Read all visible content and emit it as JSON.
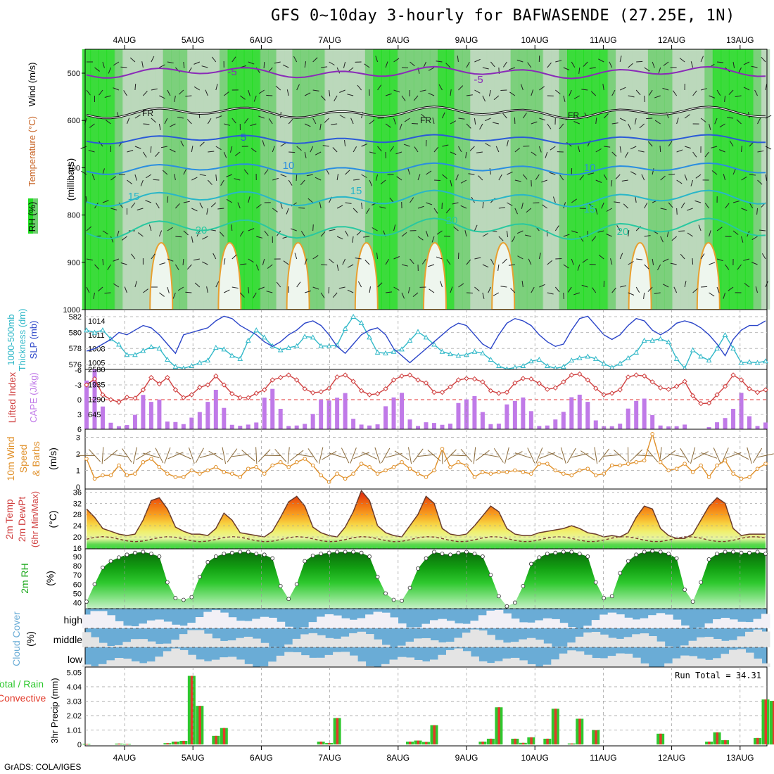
{
  "title": "GFS 0~10day 3-hourly for BAFWASENDE (27.25E, 1N)",
  "credit": "GrADS: COLA/IGES",
  "colors": {
    "green": "#2ec82e",
    "rain": "#e23a2a",
    "sky": "#6aacd6",
    "cloudy": "#e4e4e4",
    "temp": "#d04040",
    "cape": "#c07ae8",
    "wind10": "#e0902a",
    "slp": "#2a44c8",
    "thick": "#30b8c8",
    "rh": "#1aa81a",
    "fr": "#111111"
  },
  "dates": [
    "4AUG",
    "5AUG",
    "6AUG",
    "7AUG",
    "8AUG",
    "9AUG",
    "10AUG",
    "11AUG",
    "12AUG",
    "13AUG"
  ],
  "panels": {
    "upper": {
      "ylabel": "(millibars)",
      "legend": [
        "RH (%)",
        "Temperature (°C)",
        "Wind (m/s)"
      ],
      "ticks": [
        "500",
        "600",
        "700",
        "800",
        "900",
        "1000"
      ],
      "contour_labels": [
        {
          "text": "-5",
          "level": -5
        },
        {
          "text": "-5",
          "level": -5
        },
        {
          "text": "FR",
          "level": 0
        },
        {
          "text": "FR",
          "level": 0
        },
        {
          "text": "FR",
          "level": 0
        },
        {
          "text": "5",
          "level": 5
        },
        {
          "text": "10",
          "level": 10
        },
        {
          "text": "10",
          "level": 10
        },
        {
          "text": "15",
          "level": 15
        },
        {
          "text": "15",
          "level": 15
        },
        {
          "text": "15",
          "level": 15
        },
        {
          "text": "20",
          "level": 20
        },
        {
          "text": "20",
          "level": 20
        },
        {
          "text": "20",
          "level": 20
        }
      ]
    },
    "slp": {
      "left_label": "1000-500mb Thickness (dm)",
      "right_label": "SLP (mb)",
      "left_ticks": [
        "582",
        "580",
        "578",
        "576"
      ],
      "right_ticks": [
        "1014",
        "1011",
        "1008",
        "1005"
      ]
    },
    "cape": {
      "left_label": "Lifted Index",
      "right_label": "CAPE (J/kg)",
      "left_ticks": [
        "-6",
        "-3",
        "0",
        "3",
        "6"
      ],
      "right_ticks": [
        "2580",
        "1935",
        "1290",
        "645"
      ]
    },
    "wind10": {
      "left_label": "10m Wind",
      "mid_label": "Speed & Barbs",
      "unit": "(m/s)",
      "ticks": [
        "3",
        "2",
        "1",
        "0"
      ]
    },
    "temp2m": {
      "l1": "2m Temp",
      "l2": "2m DewPt",
      "l3": "(6hr Min/Max)",
      "unit": "(°C)",
      "ticks": [
        "36",
        "32",
        "28",
        "24",
        "20",
        "16"
      ]
    },
    "rh2m": {
      "label": "2m RH",
      "unit": "(%)",
      "ticks": [
        "90",
        "80",
        "70",
        "60",
        "50",
        "40"
      ]
    },
    "cloud": {
      "label": "Cloud Cover",
      "unit": "(%)",
      "levels": [
        "high",
        "middle",
        "low"
      ]
    },
    "precip": {
      "left1": "Total / Rain",
      "left2": "Convective",
      "ylabel": "3hr Precip (mm)",
      "ticks": [
        "5.05",
        "4.04",
        "3.03",
        "2.02",
        "1.01",
        "0"
      ],
      "run_total": "Run Total = 34.31"
    }
  },
  "chart_data": [
    {
      "type": "line",
      "name": "1000-500mb Thickness",
      "yunit": "dm",
      "ylim": [
        575,
        583
      ],
      "y": [
        580.3,
        580,
        580.3,
        579.2,
        578.5,
        577.2,
        577.2,
        577.7,
        578.2,
        578,
        576.6,
        575.7,
        575.5,
        575.8,
        576.2,
        576.5,
        578.1,
        577.9,
        577.1,
        576.7,
        579,
        580.3,
        579.4,
        578.3,
        577.8,
        578.1,
        578.3,
        579.5,
        579.4,
        578.3,
        578.3,
        578.4,
        580.5,
        582,
        581.2,
        579.4,
        577.5,
        577.4,
        577.6,
        577.9,
        579,
        580.1,
        579.4,
        578.5,
        577.6,
        577.3,
        577.1,
        577.2,
        577.6,
        577.4,
        576.6,
        575.8,
        575.4,
        575.6,
        575.8,
        576.4,
        576.6,
        575.8,
        575.5,
        575.7,
        576.5,
        576.8,
        577,
        576.7,
        576.1,
        575.6,
        576.1,
        576.8,
        577.5,
        579,
        579,
        579.2,
        578.8,
        576.7,
        575.5,
        577.8,
        577,
        576.5,
        578,
        579.7,
        578,
        576.2,
        576.3,
        576.2,
        576.4
      ]
    },
    {
      "type": "line",
      "name": "SLP",
      "yunit": "mb",
      "ylim": [
        1004,
        1015.5
      ],
      "y": [
        1007.5,
        1008,
        1009,
        1010,
        1011.5,
        1011,
        1012,
        1013,
        1012.5,
        1011,
        1009,
        1007,
        1011,
        1011.5,
        1012,
        1012.5,
        1014,
        1015,
        1014.5,
        1013,
        1012,
        1011,
        1009.5,
        1008.5,
        1009.5,
        1011,
        1012,
        1013.5,
        1014,
        1013,
        1011,
        1008.5,
        1007,
        1009,
        1011,
        1012,
        1012.5,
        1011,
        1008,
        1006.5,
        1005,
        1006.5,
        1008,
        1009.5,
        1011,
        1012.5,
        1013.5,
        1013,
        1011,
        1009,
        1008,
        1011,
        1013.5,
        1014.5,
        1014,
        1013,
        1011,
        1009.5,
        1008.5,
        1009,
        1012,
        1014.5,
        1015,
        1013,
        1011,
        1010,
        1011,
        1013,
        1014.5,
        1014,
        1012,
        1011,
        1012,
        1013.5,
        1014,
        1013.5,
        1012.5,
        1011,
        1009,
        1006.5,
        1010,
        1012,
        1013,
        1013,
        1014
      ]
    },
    {
      "type": "line",
      "name": "Lifted Index",
      "yunit": "",
      "ylim": [
        6,
        -6
      ],
      "y": [
        -3,
        -4.2,
        -1,
        0,
        0.5,
        -0.5,
        -0.3,
        -2,
        -4.5,
        -3.2,
        -4.5,
        -2,
        -0.4,
        -1,
        -2.5,
        -3,
        -4.8,
        -3,
        -1.2,
        -0.4,
        -0.4,
        -1.3,
        -2,
        -4,
        -4.5,
        -5,
        -4,
        -2.2,
        -1.4,
        -1.6,
        -2.3,
        -4.6,
        -5,
        -3.7,
        -1.8,
        -1,
        -1.2,
        -2.2,
        -4,
        -4.8,
        -5,
        -4,
        -3.4,
        -1.5,
        -1.5,
        -2.6,
        -4,
        -4.3,
        -4.2,
        -3.6,
        -1.8,
        -1.3,
        -1.5,
        -3.4,
        -4.3,
        -4.2,
        -3.3,
        -2.1,
        -2.4,
        -3.6,
        -5,
        -5.2,
        -4,
        -2.3,
        -1,
        -1.3,
        -2,
        -4.6,
        -5,
        -4.8,
        -3.6,
        -2.4,
        -2.1,
        -2.7,
        -3.7,
        -0.8,
        0.8,
        0.7,
        -1,
        -2.7,
        -5,
        -4,
        -2.2,
        -1.5,
        -2
      ]
    },
    {
      "type": "bar",
      "name": "CAPE",
      "yunit": "J/kg",
      "ylim": [
        0,
        2580
      ],
      "y": [
        2100,
        2580,
        980,
        280,
        130,
        180,
        620,
        1480,
        1180,
        1280,
        330,
        310,
        220,
        500,
        740,
        1180,
        1700,
        920,
        190,
        150,
        200,
        290,
        1360,
        1740,
        880,
        140,
        160,
        230,
        660,
        1280,
        1240,
        1360,
        1560,
        450,
        200,
        160,
        210,
        990,
        1370,
        1570,
        420,
        140,
        300,
        270,
        190,
        240,
        1130,
        1290,
        1430,
        740,
        220,
        240,
        1070,
        1220,
        1370,
        780,
        140,
        160,
        420,
        750,
        1380,
        1490,
        1180,
        380,
        130,
        130,
        240,
        890,
        1220,
        1320,
        610,
        160,
        120,
        130,
        200,
        0,
        0,
        90,
        300,
        480,
        880,
        1570,
        560,
        140,
        290
      ]
    },
    {
      "type": "line",
      "name": "10m Wind Speed",
      "yunit": "m/s",
      "ylim": [
        0,
        3.4
      ],
      "y": [
        1.7,
        0.5,
        0.7,
        0.7,
        1.3,
        0.7,
        0.8,
        1.5,
        1.7,
        1.2,
        0.8,
        0.6,
        0.6,
        1,
        0.8,
        1,
        1.2,
        0.9,
        0.8,
        0.6,
        1.1,
        1.2,
        0.8,
        1.3,
        1.5,
        1.2,
        1.5,
        1.7,
        1.3,
        0.7,
        0.3,
        0.8,
        0.5,
        0.8,
        1.4,
        1.2,
        0.8,
        1,
        1.2,
        1.5,
        1.1,
        0.8,
        0.6,
        1,
        2.3,
        1.2,
        1.5,
        1.3,
        0.6,
        0.9,
        0.8,
        0.9,
        0.9,
        1,
        0.9,
        0.8,
        1.4,
        1.4,
        1,
        0.8,
        0.7,
        1,
        1.1,
        0.7,
        0.8,
        1.3,
        1.3,
        1.4,
        1.5,
        1.6,
        3.2,
        1.5,
        1,
        1.1,
        1.4,
        0.9,
        1.3,
        0.6,
        1.3,
        1.6,
        0.8,
        0.5,
        0.6,
        1.1,
        1.4
      ]
    },
    {
      "type": "area",
      "name": "2m Temp",
      "yunit": "°C",
      "ylim": [
        16,
        36
      ],
      "y": [
        30,
        27,
        23,
        22,
        21,
        20.5,
        21,
        26,
        33,
        34,
        30,
        23.5,
        22,
        21,
        21,
        20.5,
        23,
        28.5,
        26,
        21.5,
        21,
        20.5,
        20,
        22,
        27,
        32.5,
        34.5,
        31,
        23.5,
        21.5,
        20.5,
        20,
        23.5,
        29,
        36.5,
        33,
        24,
        21.5,
        20.5,
        20,
        24,
        28,
        34.5,
        32,
        23,
        21,
        20.5,
        21,
        24,
        27.5,
        31,
        29,
        23,
        21,
        20.5,
        20.5,
        21.5,
        22,
        22.5,
        23,
        24,
        23,
        21.5,
        21,
        20,
        20.5,
        20,
        21.5,
        27,
        31,
        30,
        23,
        20.5,
        19.5,
        19.5,
        21,
        26,
        31,
        34,
        32,
        23,
        20.5,
        21,
        21,
        21
      ]
    },
    {
      "type": "area",
      "name": "2m RH",
      "yunit": "%",
      "ylim": [
        35,
        95
      ],
      "y": [
        41,
        60,
        78,
        85,
        89,
        92,
        94,
        95,
        93,
        90,
        62,
        45,
        43,
        46,
        68,
        84,
        90,
        93,
        94,
        95,
        95,
        93,
        92,
        88,
        58,
        44,
        60,
        85,
        91,
        93,
        94,
        95,
        95,
        95,
        94,
        90,
        68,
        50,
        43,
        42,
        56,
        77,
        88,
        95,
        93,
        92,
        94,
        95,
        93,
        90,
        70,
        47,
        36,
        40,
        58,
        82,
        89,
        93,
        94,
        95,
        95,
        93,
        90,
        62,
        45,
        47,
        72,
        85,
        92,
        95,
        96,
        95,
        93,
        88,
        54,
        41,
        62,
        87,
        93,
        95,
        95,
        94,
        94,
        95,
        93
      ]
    },
    {
      "type": "bar",
      "name": "3hr Precip",
      "yunit": "mm",
      "ylim": [
        0,
        5.05
      ],
      "y": [
        0.05,
        0,
        0,
        0,
        0.06,
        0.05,
        0,
        0,
        0,
        0,
        0.09,
        0.2,
        0.25,
        4.8,
        2.7,
        0,
        0.6,
        1.15,
        0,
        0,
        0,
        0,
        0,
        0,
        0,
        0,
        0,
        0,
        0,
        0.2,
        0.1,
        1.85,
        0,
        0,
        0,
        0,
        0,
        0,
        0,
        0,
        0.2,
        0.27,
        0.18,
        1.35,
        0,
        0,
        0,
        0,
        0,
        0.2,
        0.4,
        2.6,
        0,
        0.4,
        0.11,
        0.5,
        0,
        0.4,
        2.5,
        0,
        0.07,
        1.8,
        0,
        1,
        0,
        0,
        0,
        0,
        0,
        0,
        0,
        0.75,
        0,
        0,
        0,
        0,
        0,
        0.2,
        0.85,
        0.3,
        0,
        0,
        0,
        0.45,
        3.15,
        3.05,
        0.25,
        0.1
      ]
    }
  ]
}
